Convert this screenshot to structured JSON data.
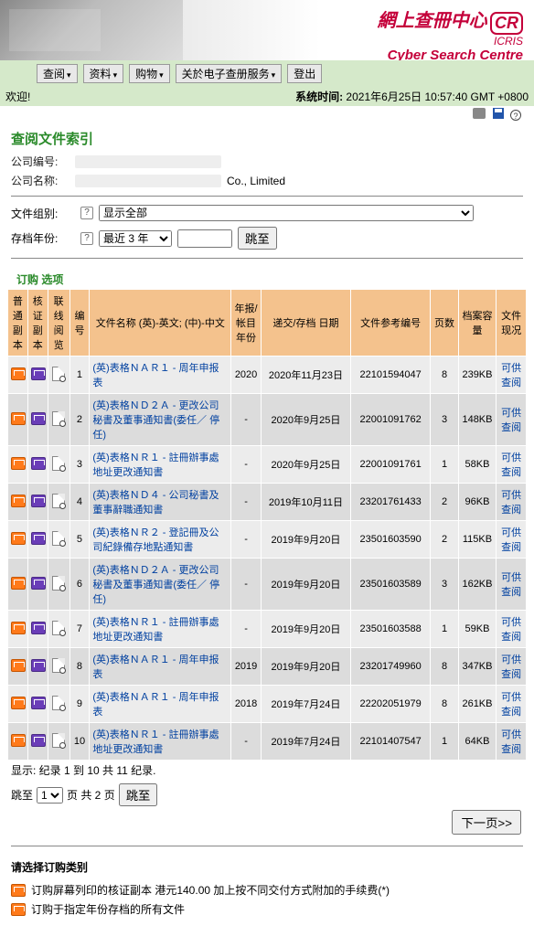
{
  "banner": {
    "title_cn": "網上查冊中心",
    "cr_badge": "CR",
    "sub": "ICRIS",
    "title_en": "Cyber Search Centre"
  },
  "menu": {
    "items": [
      "查阅",
      "资料",
      "购物",
      "关於电子查册服务",
      "登出"
    ]
  },
  "welcome": {
    "left": "欢迎!",
    "right_label": "系统时间:",
    "right_value": "2021年6月25日 10:57:40 GMT +0800"
  },
  "section_title": "查阅文件索引",
  "company": {
    "id_label": "公司编号:",
    "name_label": "公司名称:",
    "name_suffix": "Co., Limited"
  },
  "filters": {
    "group_label": "文件组别:",
    "group_select": "显示全部",
    "year_label": "存档年份:",
    "year_select": "最近 3 年",
    "go_btn": "跳至"
  },
  "order_opts_title": "订购 选项",
  "columns": {
    "c1": "普通副本",
    "c2": "核证副本",
    "c3": "联线阅览",
    "c4": "编号",
    "c5": "文件名称 (英)-英文;\n(中)-中文",
    "c6": "年报/帐目年份",
    "c7": "递交/存档\n日期",
    "c8": "文件参考编号",
    "c9": "页数",
    "c10": "档案容量",
    "c11": "文件现况"
  },
  "rows": [
    {
      "no": "1",
      "name": "(英)表格ＮＡＲ１ - 周年申报表",
      "yr": "2020",
      "date": "2020年11月23日",
      "ref": "22101594047",
      "pages": "8",
      "size": "239KB",
      "status": "可供查阅"
    },
    {
      "no": "2",
      "name": "(英)表格ＮＤ２Ａ - 更改公司秘書及董事通知書(委任／ 停任)",
      "yr": "-",
      "date": "2020年9月25日",
      "ref": "22001091762",
      "pages": "3",
      "size": "148KB",
      "status": "可供查阅"
    },
    {
      "no": "3",
      "name": "(英)表格ＮＲ１ - 註冊辦事處地址更改通知書",
      "yr": "-",
      "date": "2020年9月25日",
      "ref": "22001091761",
      "pages": "1",
      "size": "58KB",
      "status": "可供查阅"
    },
    {
      "no": "4",
      "name": "(英)表格ＮＤ４ - 公司秘書及董事辭職通知書",
      "yr": "-",
      "date": "2019年10月11日",
      "ref": "23201761433",
      "pages": "2",
      "size": "96KB",
      "status": "可供查阅"
    },
    {
      "no": "5",
      "name": "(英)表格ＮＲ２ - 登記冊及公司紀錄備存地點通知書",
      "yr": "-",
      "date": "2019年9月20日",
      "ref": "23501603590",
      "pages": "2",
      "size": "115KB",
      "status": "可供查阅"
    },
    {
      "no": "6",
      "name": "(英)表格ＮＤ２Ａ - 更改公司秘書及董事通知書(委任／ 停任)",
      "yr": "-",
      "date": "2019年9月20日",
      "ref": "23501603589",
      "pages": "3",
      "size": "162KB",
      "status": "可供查阅"
    },
    {
      "no": "7",
      "name": "(英)表格ＮＲ１ - 註冊辦事處地址更改通知書",
      "yr": "-",
      "date": "2019年9月20日",
      "ref": "23501603588",
      "pages": "1",
      "size": "59KB",
      "status": "可供查阅"
    },
    {
      "no": "8",
      "name": "(英)表格ＮＡＲ１ - 周年申报表",
      "yr": "2019",
      "date": "2019年9月20日",
      "ref": "23201749960",
      "pages": "8",
      "size": "347KB",
      "status": "可供查阅"
    },
    {
      "no": "9",
      "name": "(英)表格ＮＡＲ１ - 周年申报表",
      "yr": "2018",
      "date": "2019年7月24日",
      "ref": "22202051979",
      "pages": "8",
      "size": "261KB",
      "status": "可供查阅"
    },
    {
      "no": "10",
      "name": "(英)表格ＮＲ１ - 註冊辦事處地址更改通知書",
      "yr": "-",
      "date": "2019年7月24日",
      "ref": "22101407547",
      "pages": "1",
      "size": "64KB",
      "status": "可供查阅"
    }
  ],
  "pager": {
    "showing": "显示:  纪录 1 到 10 共 11 纪录.",
    "jump_prefix": "跳至",
    "page_select": "1",
    "jump_mid": "页  共 2 页",
    "jump_btn": "跳至",
    "next_btn": "下一页>>"
  },
  "legend": {
    "title": "请选择订购类别",
    "row1": "订购屏幕列印的核证副本     港元140.00 加上按不同交付方式附加的手续费(*)",
    "row2": "订购于指定年份存档的所有文件"
  }
}
